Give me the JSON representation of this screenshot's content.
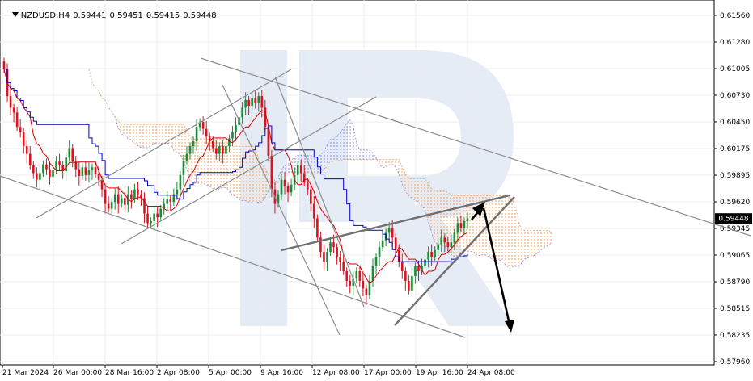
{
  "header": {
    "symbol": "NZDUSD,H4",
    "open": "0.59441",
    "high": "0.59451",
    "low": "0.59415",
    "close": "0.59448"
  },
  "colors": {
    "bull": "#1f8a3a",
    "bear": "#e0101e",
    "tenkan": "#d40000",
    "kijun": "#0000c8",
    "cloud_bull": "#8a8ad8",
    "cloud_bear": "#f0a060",
    "trendline": "#8c8c8c",
    "triangle": "#707070",
    "arrow": "#000000",
    "price_label_bg": "#000000"
  },
  "watermark_icon": "broker-logo-R",
  "chart_data": {
    "type": "candlestick",
    "title": "NZDUSD,H4",
    "y_ticks": [
      "0.61560",
      "0.61280",
      "0.61005",
      "0.60730",
      "0.60450",
      "0.60175",
      "0.59895",
      "0.59620",
      "0.59345",
      "0.59065",
      "0.58790",
      "0.58515",
      "0.58235",
      "0.57960"
    ],
    "x_ticks": [
      "21 Mar 2024",
      "26 Mar 00:00",
      "28 Mar 16:00",
      "2 Apr 08:00",
      "5 Apr 00:00",
      "9 Apr 16:00",
      "12 Apr 08:00",
      "17 Apr 00:00",
      "19 Apr 16:00",
      "24 Apr 08:00"
    ],
    "ylim": [
      0.5796,
      0.6156
    ],
    "current_price": "0.59448",
    "grid": true,
    "candles_close": [
      0.61,
      0.6072,
      0.606,
      0.6055,
      0.604,
      0.6035,
      0.602,
      0.6012,
      0.6,
      0.5992,
      0.5985,
      0.5992,
      0.6001,
      0.5996,
      0.5988,
      0.5995,
      0.6004,
      0.6,
      0.5994,
      0.6008,
      0.6018,
      0.6004,
      0.5996,
      0.5989,
      0.5998,
      0.599,
      0.5995,
      0.5998,
      0.5991,
      0.5985,
      0.5975,
      0.596,
      0.5955,
      0.5962,
      0.597,
      0.596,
      0.5966,
      0.5959,
      0.597,
      0.5965,
      0.5975,
      0.597,
      0.5966,
      0.595,
      0.594,
      0.5942,
      0.595,
      0.5946,
      0.5955,
      0.596,
      0.5965,
      0.5962,
      0.597,
      0.5975,
      0.599,
      0.6005,
      0.6012,
      0.602,
      0.6025,
      0.604,
      0.6045,
      0.6038,
      0.603,
      0.6025,
      0.6018,
      0.6012,
      0.602,
      0.6012,
      0.602,
      0.6028,
      0.6035,
      0.6042,
      0.605,
      0.606,
      0.6068,
      0.6062,
      0.607,
      0.6065,
      0.6072,
      0.606,
      0.604,
      0.601,
      0.5975,
      0.596,
      0.597,
      0.5985,
      0.5978,
      0.5972,
      0.598,
      0.599,
      0.6,
      0.5992,
      0.5982,
      0.5975,
      0.596,
      0.5945,
      0.5925,
      0.591,
      0.59,
      0.591,
      0.592,
      0.5915,
      0.5905,
      0.59,
      0.589,
      0.588,
      0.5875,
      0.5882,
      0.589,
      0.588,
      0.5872,
      0.5865,
      0.588,
      0.5895,
      0.5905,
      0.5915,
      0.5922,
      0.593,
      0.5935,
      0.5925,
      0.5912,
      0.59,
      0.589,
      0.588,
      0.587,
      0.5885,
      0.5895,
      0.589,
      0.5895,
      0.5902,
      0.591,
      0.5905,
      0.5912,
      0.5918,
      0.5925,
      0.592,
      0.5915,
      0.592,
      0.593,
      0.594,
      0.5935,
      0.5942,
      0.5945
    ],
    "annotations": [
      "descending channel",
      "ascending channel",
      "triangle",
      "forecast arrow up",
      "forecast arrow down"
    ]
  }
}
